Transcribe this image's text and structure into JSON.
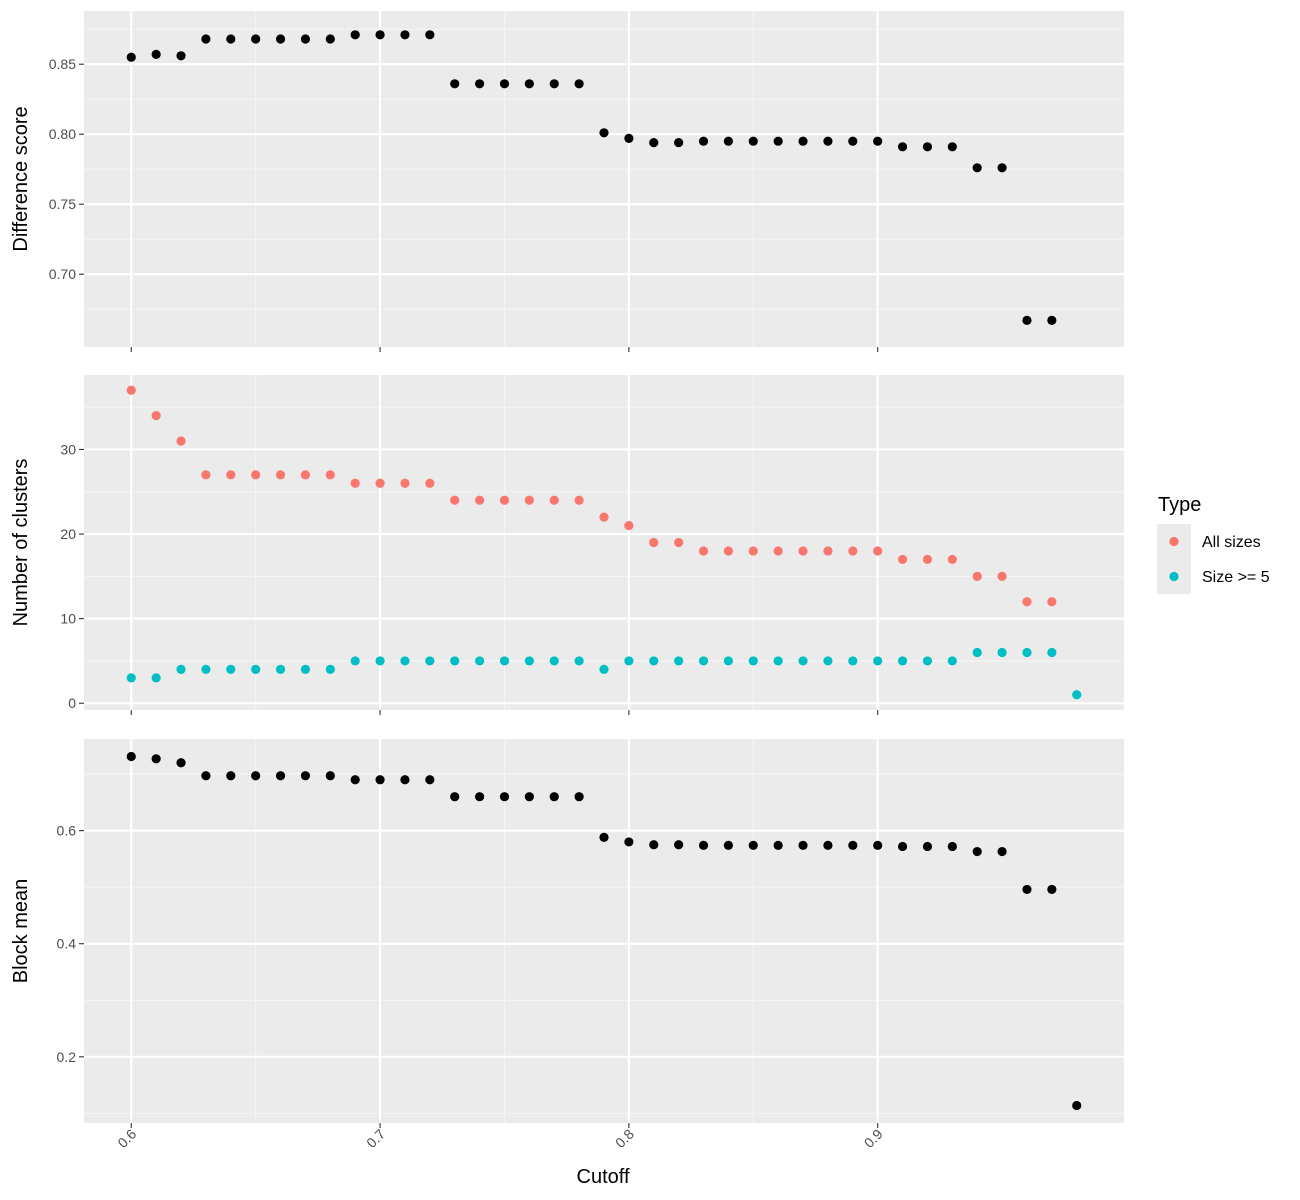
{
  "colors": {
    "panel_background": "#ebebeb",
    "grid_major": "#ffffff",
    "grid_minor": "#f5f5f5",
    "point_default": "#000000",
    "all_sizes": "#f8766d",
    "size_ge_5": "#00bfc4",
    "tick_text": "#4d4d4d"
  },
  "xaxis": {
    "label": "Cutoff",
    "range": [
      0.581,
      0.999
    ],
    "ticks": [
      0.6,
      0.7,
      0.8,
      0.9
    ],
    "tick_labels": [
      "0.6",
      "0.7",
      "0.8",
      "0.9"
    ],
    "tick_label_rotation": "-45deg"
  },
  "legend": {
    "title": "Type",
    "items": [
      {
        "label": "All sizes",
        "color": "#f8766d"
      },
      {
        "label": "Size >= 5",
        "color": "#00bfc4"
      }
    ],
    "placement": "right"
  },
  "chart_data": [
    {
      "type": "scatter",
      "ylabel": "Difference score",
      "ylim": [
        0.648,
        0.888
      ],
      "yticks": [
        0.7,
        0.75,
        0.8,
        0.85
      ],
      "ytick_labels": [
        "0.70",
        "0.75",
        "0.80",
        "0.85"
      ],
      "grid": true,
      "series": [
        {
          "color": "#000000",
          "x": [
            0.6,
            0.61,
            0.62,
            0.63,
            0.64,
            0.65,
            0.66,
            0.67,
            0.68,
            0.69,
            0.7,
            0.71,
            0.72,
            0.73,
            0.74,
            0.75,
            0.76,
            0.77,
            0.78,
            0.79,
            0.8,
            0.81,
            0.82,
            0.83,
            0.84,
            0.85,
            0.86,
            0.87,
            0.88,
            0.89,
            0.9,
            0.91,
            0.92,
            0.93,
            0.94,
            0.95,
            0.96,
            0.97
          ],
          "y": [
            0.855,
            0.857,
            0.856,
            0.868,
            0.868,
            0.868,
            0.868,
            0.868,
            0.868,
            0.871,
            0.871,
            0.871,
            0.871,
            0.836,
            0.836,
            0.836,
            0.836,
            0.836,
            0.836,
            0.801,
            0.797,
            0.794,
            0.794,
            0.795,
            0.795,
            0.795,
            0.795,
            0.795,
            0.795,
            0.795,
            0.795,
            0.791,
            0.791,
            0.791,
            0.776,
            0.776,
            0.667,
            0.667
          ]
        }
      ]
    },
    {
      "type": "scatter",
      "ylabel": "Number of clusters",
      "ylim": [
        -0.8,
        38.8
      ],
      "yticks": [
        0,
        10,
        20,
        30
      ],
      "ytick_labels": [
        "0",
        "10",
        "20",
        "30"
      ],
      "grid": true,
      "series": [
        {
          "name": "All sizes",
          "color": "#f8766d",
          "x": [
            0.6,
            0.61,
            0.62,
            0.63,
            0.64,
            0.65,
            0.66,
            0.67,
            0.68,
            0.69,
            0.7,
            0.71,
            0.72,
            0.73,
            0.74,
            0.75,
            0.76,
            0.77,
            0.78,
            0.79,
            0.8,
            0.81,
            0.82,
            0.83,
            0.84,
            0.85,
            0.86,
            0.87,
            0.88,
            0.89,
            0.9,
            0.91,
            0.92,
            0.93,
            0.94,
            0.95,
            0.96,
            0.97
          ],
          "y": [
            37,
            34,
            31,
            27,
            27,
            27,
            27,
            27,
            27,
            26,
            26,
            26,
            26,
            24,
            24,
            24,
            24,
            24,
            24,
            22,
            21,
            19,
            19,
            18,
            18,
            18,
            18,
            18,
            18,
            18,
            18,
            17,
            17,
            17,
            15,
            15,
            12,
            12
          ]
        },
        {
          "name": "Size >= 5",
          "color": "#00bfc4",
          "x": [
            0.6,
            0.61,
            0.62,
            0.63,
            0.64,
            0.65,
            0.66,
            0.67,
            0.68,
            0.69,
            0.7,
            0.71,
            0.72,
            0.73,
            0.74,
            0.75,
            0.76,
            0.77,
            0.78,
            0.79,
            0.8,
            0.81,
            0.82,
            0.83,
            0.84,
            0.85,
            0.86,
            0.87,
            0.88,
            0.89,
            0.9,
            0.91,
            0.92,
            0.93,
            0.94,
            0.95,
            0.96,
            0.97,
            0.98
          ],
          "y": [
            3,
            3,
            4,
            4,
            4,
            4,
            4,
            4,
            4,
            5,
            5,
            5,
            5,
            5,
            5,
            5,
            5,
            5,
            5,
            4,
            5,
            5,
            5,
            5,
            5,
            5,
            5,
            5,
            5,
            5,
            5,
            5,
            5,
            5,
            6,
            6,
            6,
            6,
            1
          ]
        }
      ]
    },
    {
      "type": "scatter",
      "ylabel": "Block mean",
      "ylim": [
        0.083,
        0.762
      ],
      "yticks": [
        0.2,
        0.4,
        0.6
      ],
      "ytick_labels": [
        "0.2",
        "0.4",
        "0.6"
      ],
      "grid": true,
      "series": [
        {
          "color": "#000000",
          "x": [
            0.6,
            0.61,
            0.62,
            0.63,
            0.64,
            0.65,
            0.66,
            0.67,
            0.68,
            0.69,
            0.7,
            0.71,
            0.72,
            0.73,
            0.74,
            0.75,
            0.76,
            0.77,
            0.78,
            0.79,
            0.8,
            0.81,
            0.82,
            0.83,
            0.84,
            0.85,
            0.86,
            0.87,
            0.88,
            0.89,
            0.9,
            0.91,
            0.92,
            0.93,
            0.94,
            0.95,
            0.96,
            0.97,
            0.98
          ],
          "y": [
            0.731,
            0.727,
            0.72,
            0.697,
            0.697,
            0.697,
            0.697,
            0.697,
            0.697,
            0.69,
            0.69,
            0.69,
            0.69,
            0.66,
            0.66,
            0.66,
            0.66,
            0.66,
            0.66,
            0.588,
            0.58,
            0.575,
            0.575,
            0.574,
            0.574,
            0.574,
            0.574,
            0.574,
            0.574,
            0.574,
            0.574,
            0.572,
            0.572,
            0.572,
            0.563,
            0.563,
            0.496,
            0.496,
            0.114
          ]
        }
      ]
    }
  ]
}
